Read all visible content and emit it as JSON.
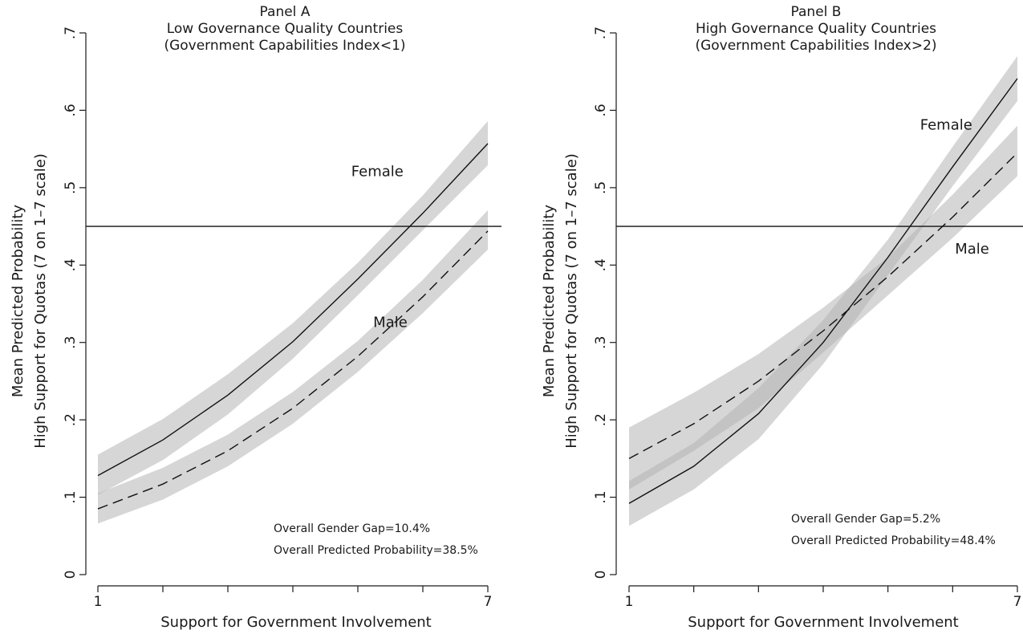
{
  "chart_data": [
    {
      "type": "line",
      "title": "Panel A",
      "subtitle": "Low Governance Quality Countries",
      "subtitle2": "(Government Capabilities Index<1)",
      "xlabel": "Support for Government Involvement",
      "ylabel_line1": "Mean Predicted Probability",
      "ylabel_line2": "High Support for Quotas (7 on 1–7 scale)",
      "xlim": [
        1,
        7
      ],
      "ylim": [
        0,
        0.7
      ],
      "x_ticks": [
        1,
        2,
        3,
        4,
        5,
        6,
        7
      ],
      "x_tick_labels": [
        "1",
        "",
        "",
        "",
        "",
        "",
        "7"
      ],
      "y_ticks": [
        0,
        0.1,
        0.2,
        0.3,
        0.4,
        0.5,
        0.6,
        0.7
      ],
      "y_tick_labels": [
        "0",
        ".1",
        ".2",
        ".3",
        ".4",
        ".5",
        ".6",
        ".7"
      ],
      "reference_line_y": 0.45,
      "x": [
        1,
        2,
        3,
        4,
        5,
        6,
        7
      ],
      "series": [
        {
          "name": "Female",
          "line_style": "solid",
          "values": [
            0.128,
            0.174,
            0.232,
            0.301,
            0.382,
            0.467,
            0.557
          ],
          "lower": [
            0.103,
            0.148,
            0.207,
            0.279,
            0.361,
            0.445,
            0.529
          ],
          "upper": [
            0.155,
            0.201,
            0.259,
            0.325,
            0.403,
            0.49,
            0.586
          ]
        },
        {
          "name": "Male",
          "line_style": "dashed",
          "values": [
            0.085,
            0.117,
            0.16,
            0.215,
            0.282,
            0.359,
            0.444
          ],
          "lower": [
            0.066,
            0.097,
            0.14,
            0.195,
            0.262,
            0.338,
            0.42
          ],
          "upper": [
            0.105,
            0.138,
            0.181,
            0.236,
            0.302,
            0.381,
            0.471
          ]
        }
      ],
      "curve_labels": [
        {
          "text": "Female",
          "x": 5.3,
          "y": 0.515
        },
        {
          "text": "Male",
          "x": 5.5,
          "y": 0.32
        }
      ],
      "annotations": [
        "Overall Gender Gap=10.4%",
        "Overall Predicted Probability=38.5%"
      ]
    },
    {
      "type": "line",
      "title": "Panel B",
      "subtitle": "High Governance Quality Countries",
      "subtitle2": "(Government Capabilities Index>2)",
      "xlabel": "Support for Government Involvement",
      "ylabel_line1": "Mean Predicted Probability",
      "ylabel_line2": "High Support for Quotas (7 on 1–7 scale)",
      "xlim": [
        1,
        7
      ],
      "ylim": [
        0,
        0.7
      ],
      "x_ticks": [
        1,
        2,
        3,
        4,
        5,
        6,
        7
      ],
      "x_tick_labels": [
        "1",
        "",
        "",
        "",
        "",
        "",
        "7"
      ],
      "y_ticks": [
        0,
        0.1,
        0.2,
        0.3,
        0.4,
        0.5,
        0.6,
        0.7
      ],
      "y_tick_labels": [
        "0",
        ".1",
        ".2",
        ".3",
        ".4",
        ".5",
        ".6",
        ".7"
      ],
      "reference_line_y": 0.45,
      "x": [
        1,
        2,
        3,
        4,
        5,
        6,
        7
      ],
      "series": [
        {
          "name": "Female",
          "line_style": "solid",
          "values": [
            0.092,
            0.14,
            0.208,
            0.3,
            0.41,
            0.527,
            0.641
          ],
          "lower": [
            0.063,
            0.11,
            0.175,
            0.272,
            0.387,
            0.502,
            0.612
          ],
          "upper": [
            0.121,
            0.17,
            0.241,
            0.329,
            0.433,
            0.553,
            0.67
          ]
        },
        {
          "name": "Male",
          "line_style": "dashed",
          "values": [
            0.15,
            0.195,
            0.25,
            0.315,
            0.385,
            0.462,
            0.545
          ],
          "lower": [
            0.11,
            0.16,
            0.215,
            0.287,
            0.361,
            0.435,
            0.515
          ],
          "upper": [
            0.19,
            0.235,
            0.285,
            0.345,
            0.41,
            0.491,
            0.58
          ]
        }
      ],
      "curve_labels": [
        {
          "text": "Female",
          "x": 5.9,
          "y": 0.575
        },
        {
          "text": "Male",
          "x": 6.3,
          "y": 0.415
        }
      ],
      "annotations": [
        "Overall Gender Gap=5.2%",
        "Overall Predicted Probability=48.4%"
      ]
    }
  ]
}
